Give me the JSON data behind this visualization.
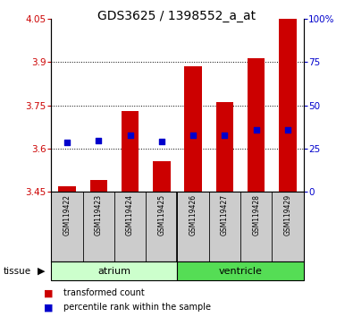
{
  "title": "GDS3625 / 1398552_a_at",
  "samples": [
    "GSM119422",
    "GSM119423",
    "GSM119424",
    "GSM119425",
    "GSM119426",
    "GSM119427",
    "GSM119428",
    "GSM119429"
  ],
  "bar_tops": [
    3.47,
    3.49,
    3.73,
    3.555,
    3.885,
    3.762,
    3.915,
    4.05
  ],
  "bar_bottom": 3.45,
  "blue_values": [
    3.623,
    3.628,
    3.648,
    3.625,
    3.648,
    3.648,
    3.665,
    3.665
  ],
  "ylim_left": [
    3.45,
    4.05
  ],
  "ylim_right": [
    0,
    100
  ],
  "yticks_left": [
    3.45,
    3.6,
    3.75,
    3.9,
    4.05
  ],
  "yticks_right": [
    0,
    25,
    50,
    75,
    100
  ],
  "ytick_labels_left": [
    "3.45",
    "3.6",
    "3.75",
    "3.9",
    "4.05"
  ],
  "ytick_labels_right": [
    "0",
    "25",
    "50",
    "75",
    "100%"
  ],
  "bar_color": "#CC0000",
  "blue_color": "#0000CC",
  "title_fontsize": 10,
  "bar_width": 0.55,
  "atrium_color": "#ccffcc",
  "ventricle_color": "#55dd55",
  "gray_color": "#cccccc"
}
